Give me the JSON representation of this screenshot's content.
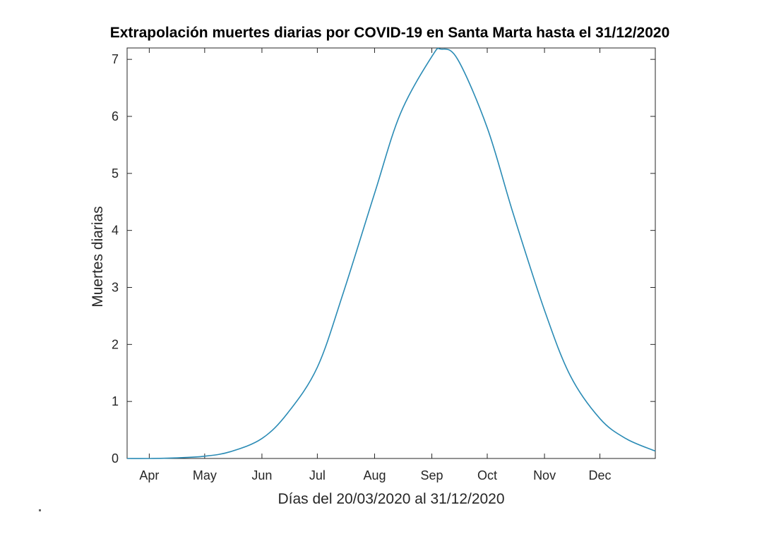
{
  "chart_data": {
    "type": "line",
    "title": "Extrapolación muertes diarias por COVID-19 en Santa Marta hasta el 31/12/2020",
    "xlabel": "Días del 20/03/2020 al 31/12/2020",
    "ylabel": "Muertes diarias",
    "x_range": [
      "2020-03-20",
      "2020-12-31"
    ],
    "ylim": [
      0,
      7.2
    ],
    "y_ticks": [
      0,
      1,
      2,
      3,
      4,
      5,
      6,
      7
    ],
    "x_ticks": [
      {
        "date": "2020-04-01",
        "label": "Apr"
      },
      {
        "date": "2020-05-01",
        "label": "May"
      },
      {
        "date": "2020-06-01",
        "label": "Jun"
      },
      {
        "date": "2020-07-01",
        "label": "Jul"
      },
      {
        "date": "2020-08-01",
        "label": "Aug"
      },
      {
        "date": "2020-09-01",
        "label": "Sep"
      },
      {
        "date": "2020-10-01",
        "label": "Oct"
      },
      {
        "date": "2020-11-01",
        "label": "Nov"
      },
      {
        "date": "2020-12-01",
        "label": "Dec"
      }
    ],
    "grid": false,
    "line_color": "#2a8bb5",
    "series": [
      {
        "x": [
          "2020-03-20",
          "2020-04-01",
          "2020-04-15",
          "2020-05-01",
          "2020-05-15",
          "2020-06-01",
          "2020-06-15",
          "2020-07-01",
          "2020-07-15",
          "2020-08-01",
          "2020-08-15",
          "2020-09-01",
          "2020-09-06",
          "2020-09-15",
          "2020-10-01",
          "2020-10-15",
          "2020-11-01",
          "2020-11-15",
          "2020-12-01",
          "2020-12-15",
          "2020-12-31"
        ],
        "values": [
          0.0,
          0.0,
          0.01,
          0.04,
          0.12,
          0.35,
          0.8,
          1.6,
          2.9,
          4.65,
          6.05,
          7.05,
          7.18,
          7.0,
          5.8,
          4.3,
          2.6,
          1.45,
          0.7,
          0.35,
          0.13
        ]
      }
    ]
  }
}
